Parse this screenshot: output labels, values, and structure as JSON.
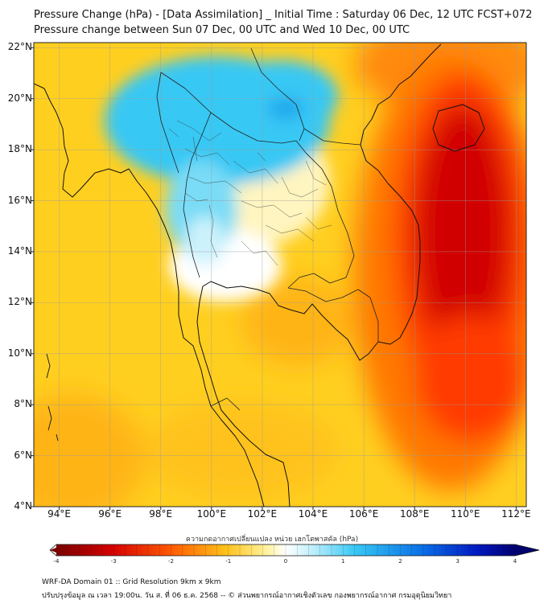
{
  "header": {
    "title_line1": "Pressure Change (hPa) - [Data Assimilation] _ Initial Time : Saturday 06 Dec, 12 UTC FCST+072",
    "title_line2": "Pressure change between Sun 07 Dec, 00 UTC and Wed 10 Dec, 00 UTC"
  },
  "map": {
    "lat_labels": [
      "22°N",
      "20°N",
      "18°N",
      "16°N",
      "14°N",
      "12°N",
      "10°N",
      "8°N",
      "6°N",
      "4°N"
    ],
    "lon_labels": [
      "94°E",
      "96°E",
      "98°E",
      "100°E",
      "102°E",
      "104°E",
      "106°E",
      "108°E",
      "110°E",
      "112°E"
    ],
    "lat_range": [
      4,
      22.2
    ],
    "lon_range": [
      93,
      112.4
    ],
    "colors": {
      "strong_rise": "#d10000",
      "rise": "#ff7800",
      "weak_rise": "#ffcf20",
      "neutral": "#ffffff",
      "fall": "#38c8f4",
      "coast": "#111111",
      "border": "#222222"
    }
  },
  "colorbar": {
    "title": "ความกดอากาศเปลี่ยนแปลง หน่วย เฮกโตพาสคัล (hPa)",
    "ticks": [
      "-4",
      "-3",
      "-2",
      "-1",
      "0",
      "1",
      "2",
      "3",
      "4"
    ],
    "range": [
      -4,
      4
    ],
    "low_color": "#7a0000",
    "mid_color": "#ffffff",
    "high_color": "#00006e"
  },
  "footer": {
    "line1": "WRF-DA Domain 01 :: Grid Resolution 9km x 9km",
    "line2": "ปรับปรุงข้อมูล ณ เวลา 19:00น. วัน ส. ที่ 06 ธ.ค. 2568 -- © ส่วนพยากรณ์อากาศเชิงตัวเลข กองพยากรณ์อากาศ กรมอุตุนิยมวิทยา"
  }
}
